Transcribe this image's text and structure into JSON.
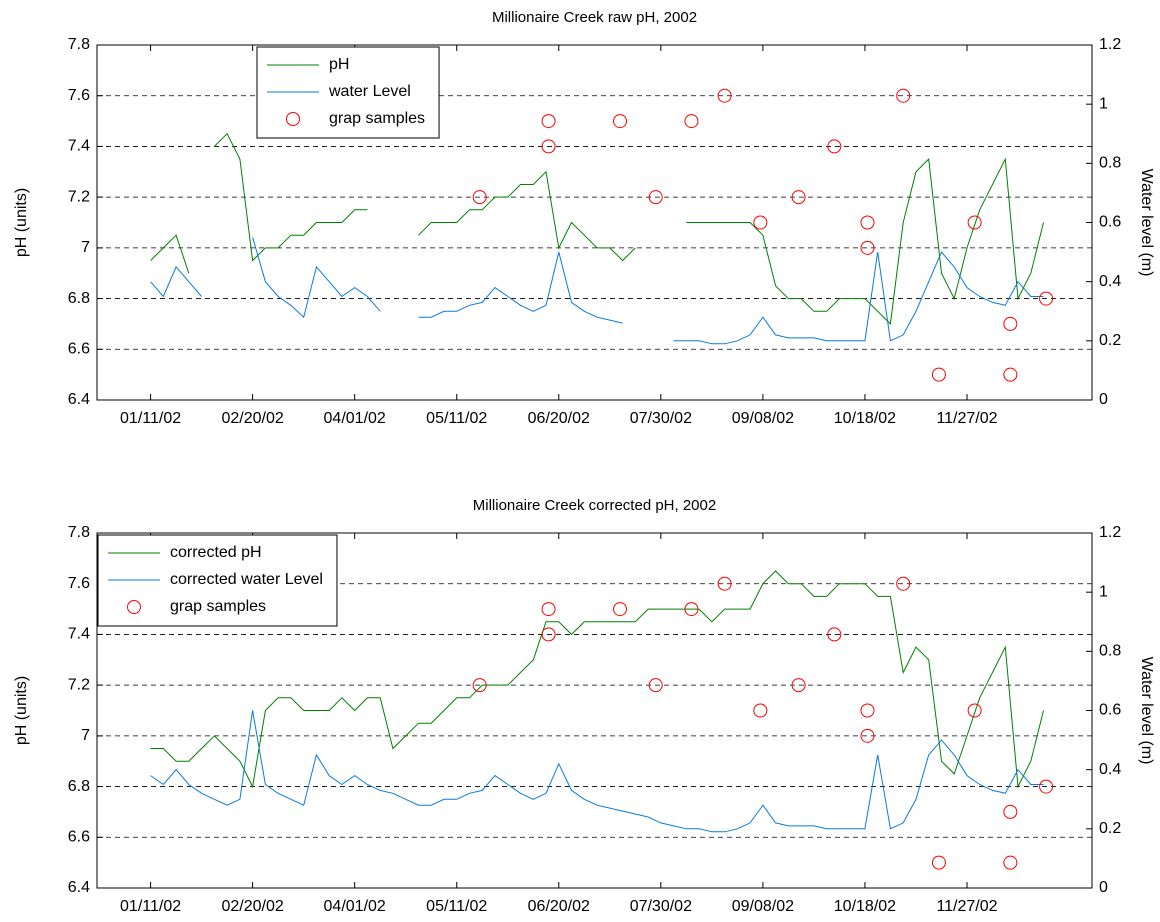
{
  "chart_data": [
    {
      "type": "line",
      "title": "Millionaire Creek raw pH, 2002",
      "ylabel": "pH (units)",
      "y2label": "Water level (m)",
      "x": [
        "2002-01-11",
        "2002-01-16",
        "2002-01-21",
        "2002-01-26",
        "2002-01-31",
        "2002-02-05",
        "2002-02-10",
        "2002-02-15",
        "2002-02-20",
        "2002-02-25",
        "2002-03-02",
        "2002-03-07",
        "2002-03-12",
        "2002-03-17",
        "2002-03-22",
        "2002-03-27",
        "2002-04-01",
        "2002-04-06",
        "2002-04-11",
        "2002-04-16",
        "2002-04-21",
        "2002-04-26",
        "2002-05-01",
        "2002-05-06",
        "2002-05-11",
        "2002-05-16",
        "2002-05-21",
        "2002-05-26",
        "2002-05-31",
        "2002-06-05",
        "2002-06-10",
        "2002-06-15",
        "2002-06-20",
        "2002-06-25",
        "2002-06-30",
        "2002-07-05",
        "2002-07-10",
        "2002-07-15",
        "2002-07-20",
        "2002-07-25",
        "2002-07-30",
        "2002-08-04",
        "2002-08-09",
        "2002-08-14",
        "2002-08-19",
        "2002-08-24",
        "2002-08-29",
        "2002-09-03",
        "2002-09-08",
        "2002-09-13",
        "2002-09-18",
        "2002-09-23",
        "2002-09-28",
        "2002-10-03",
        "2002-10-08",
        "2002-10-13",
        "2002-10-18",
        "2002-10-23",
        "2002-10-28",
        "2002-11-02",
        "2002-11-07",
        "2002-11-12",
        "2002-11-17",
        "2002-11-22",
        "2002-11-27",
        "2002-12-02",
        "2002-12-07",
        "2002-12-12",
        "2002-12-17",
        "2002-12-22",
        "2002-12-27"
      ],
      "series": [
        {
          "name": "pH",
          "color": "#008000",
          "values": [
            6.95,
            7.0,
            7.05,
            6.9,
            null,
            7.4,
            7.45,
            7.35,
            6.95,
            7.0,
            7.0,
            7.05,
            7.05,
            7.1,
            7.1,
            7.1,
            7.15,
            7.15,
            null,
            null,
            null,
            7.05,
            7.1,
            7.1,
            7.1,
            7.15,
            7.15,
            7.2,
            7.2,
            7.25,
            7.25,
            7.3,
            7.0,
            7.1,
            7.05,
            7.0,
            7.0,
            6.95,
            7.0,
            null,
            null,
            null,
            7.1,
            7.1,
            7.1,
            7.1,
            7.1,
            7.1,
            7.05,
            6.85,
            6.8,
            6.8,
            6.75,
            6.75,
            6.8,
            6.8,
            6.8,
            6.75,
            6.7,
            7.1,
            7.3,
            7.35,
            6.9,
            6.8,
            7.0,
            7.15,
            7.25,
            7.35,
            6.8,
            6.9,
            7.1
          ]
        },
        {
          "name": "water Level",
          "color": "#0a7ae0",
          "axis": "y2",
          "values": [
            0.4,
            0.35,
            0.45,
            0.4,
            0.35,
            null,
            null,
            null,
            0.55,
            0.4,
            0.35,
            0.32,
            0.28,
            0.45,
            0.4,
            0.35,
            0.38,
            0.35,
            0.3,
            null,
            null,
            0.28,
            0.28,
            0.3,
            0.3,
            0.32,
            0.33,
            0.38,
            0.35,
            0.32,
            0.3,
            0.32,
            0.5,
            0.33,
            0.3,
            0.28,
            0.27,
            0.26,
            null,
            null,
            null,
            0.2,
            0.2,
            0.2,
            0.19,
            0.19,
            0.2,
            0.22,
            0.28,
            0.22,
            0.21,
            0.21,
            0.21,
            0.2,
            0.2,
            0.2,
            0.2,
            0.5,
            0.2,
            0.22,
            0.3,
            0.4,
            0.5,
            0.45,
            0.38,
            0.35,
            0.33,
            0.32,
            0.4,
            0.35,
            0.35
          ]
        },
        {
          "name": "grap samples",
          "color": "#ff0000",
          "marker": "o",
          "x": [
            "2002-05-20",
            "2002-06-16",
            "2002-06-16",
            "2002-07-14",
            "2002-07-28",
            "2002-08-11",
            "2002-08-24",
            "2002-09-07",
            "2002-09-22",
            "2002-10-06",
            "2002-10-19",
            "2002-10-19",
            "2002-11-02",
            "2002-11-16",
            "2002-11-30",
            "2002-12-14",
            "2002-12-14",
            "2002-12-28"
          ],
          "values": [
            7.2,
            7.5,
            7.4,
            7.5,
            7.2,
            7.5,
            7.6,
            7.1,
            7.2,
            7.4,
            7.1,
            7.0,
            7.6,
            6.5,
            7.1,
            6.7,
            6.5,
            6.8
          ]
        }
      ],
      "xlim": [
        "2001-12-21",
        "2003-01-15"
      ],
      "xticks": [
        {
          "value": "2002-01-11",
          "label": "01/11/02"
        },
        {
          "value": "2002-02-20",
          "label": "02/20/02"
        },
        {
          "value": "2002-04-01",
          "label": "04/01/02"
        },
        {
          "value": "2002-05-11",
          "label": "05/11/02"
        },
        {
          "value": "2002-06-20",
          "label": "06/20/02"
        },
        {
          "value": "2002-07-30",
          "label": "07/30/02"
        },
        {
          "value": "2002-09-08",
          "label": "09/08/02"
        },
        {
          "value": "2002-10-18",
          "label": "10/18/02"
        },
        {
          "value": "2002-11-27",
          "label": "11/27/02"
        }
      ],
      "ylim": [
        6.4,
        7.8
      ],
      "yticks": [
        6.4,
        6.6,
        6.8,
        7,
        7.2,
        7.4,
        7.6,
        7.8
      ],
      "y2lim": [
        0,
        1.2
      ],
      "y2ticks": [
        0,
        0.2,
        0.4,
        0.6,
        0.8,
        1,
        1.2
      ],
      "grid": "y",
      "legend": "upper left"
    },
    {
      "type": "line",
      "title": "Millionaire Creek corrected pH, 2002",
      "ylabel": "pH (units)",
      "y2label": "Water level (m)",
      "x": [
        "2002-01-11",
        "2002-01-16",
        "2002-01-21",
        "2002-01-26",
        "2002-01-31",
        "2002-02-05",
        "2002-02-10",
        "2002-02-15",
        "2002-02-20",
        "2002-02-25",
        "2002-03-02",
        "2002-03-07",
        "2002-03-12",
        "2002-03-17",
        "2002-03-22",
        "2002-03-27",
        "2002-04-01",
        "2002-04-06",
        "2002-04-11",
        "2002-04-16",
        "2002-04-21",
        "2002-04-26",
        "2002-05-01",
        "2002-05-06",
        "2002-05-11",
        "2002-05-16",
        "2002-05-21",
        "2002-05-26",
        "2002-05-31",
        "2002-06-05",
        "2002-06-10",
        "2002-06-15",
        "2002-06-20",
        "2002-06-25",
        "2002-06-30",
        "2002-07-05",
        "2002-07-10",
        "2002-07-15",
        "2002-07-20",
        "2002-07-25",
        "2002-07-30",
        "2002-08-04",
        "2002-08-09",
        "2002-08-14",
        "2002-08-19",
        "2002-08-24",
        "2002-08-29",
        "2002-09-03",
        "2002-09-08",
        "2002-09-13",
        "2002-09-18",
        "2002-09-23",
        "2002-09-28",
        "2002-10-03",
        "2002-10-08",
        "2002-10-13",
        "2002-10-18",
        "2002-10-23",
        "2002-10-28",
        "2002-11-02",
        "2002-11-07",
        "2002-11-12",
        "2002-11-17",
        "2002-11-22",
        "2002-11-27",
        "2002-12-02",
        "2002-12-07",
        "2002-12-12",
        "2002-12-17",
        "2002-12-22",
        "2002-12-27"
      ],
      "series": [
        {
          "name": "corrected pH",
          "color": "#008000",
          "values": [
            6.95,
            6.95,
            6.9,
            6.9,
            6.95,
            7.0,
            6.95,
            6.9,
            6.8,
            7.1,
            7.15,
            7.15,
            7.1,
            7.1,
            7.1,
            7.15,
            7.1,
            7.15,
            7.15,
            6.95,
            7.0,
            7.05,
            7.05,
            7.1,
            7.15,
            7.15,
            7.2,
            7.2,
            7.2,
            7.25,
            7.3,
            7.45,
            7.45,
            7.4,
            7.45,
            7.45,
            7.45,
            7.45,
            7.45,
            7.5,
            7.5,
            7.5,
            7.5,
            7.5,
            7.45,
            7.5,
            7.5,
            7.5,
            7.6,
            7.65,
            7.6,
            7.6,
            7.55,
            7.55,
            7.6,
            7.6,
            7.6,
            7.55,
            7.55,
            7.25,
            7.35,
            7.3,
            6.9,
            6.85,
            7.0,
            7.15,
            7.25,
            7.35,
            6.8,
            6.9,
            7.1
          ]
        },
        {
          "name": "corrected water Level",
          "color": "#0a7ae0",
          "axis": "y2",
          "values": [
            0.38,
            0.35,
            0.4,
            0.35,
            0.32,
            0.3,
            0.28,
            0.3,
            0.6,
            0.35,
            0.32,
            0.3,
            0.28,
            0.45,
            0.38,
            0.35,
            0.38,
            0.35,
            0.33,
            0.32,
            0.3,
            0.28,
            0.28,
            0.3,
            0.3,
            0.32,
            0.33,
            0.38,
            0.35,
            0.32,
            0.3,
            0.32,
            0.42,
            0.33,
            0.3,
            0.28,
            0.27,
            0.26,
            0.25,
            0.24,
            0.22,
            0.21,
            0.2,
            0.2,
            0.19,
            0.19,
            0.2,
            0.22,
            0.28,
            0.22,
            0.21,
            0.21,
            0.21,
            0.2,
            0.2,
            0.2,
            0.2,
            0.45,
            0.2,
            0.22,
            0.3,
            0.45,
            0.5,
            0.45,
            0.38,
            0.35,
            0.33,
            0.32,
            0.4,
            0.35,
            0.35
          ]
        },
        {
          "name": "grap samples",
          "color": "#ff0000",
          "marker": "o",
          "x": [
            "2002-05-20",
            "2002-06-16",
            "2002-06-16",
            "2002-07-14",
            "2002-07-28",
            "2002-08-11",
            "2002-08-24",
            "2002-09-07",
            "2002-09-22",
            "2002-10-06",
            "2002-10-19",
            "2002-10-19",
            "2002-11-02",
            "2002-11-16",
            "2002-11-30",
            "2002-12-14",
            "2002-12-14",
            "2002-12-28"
          ],
          "values": [
            7.2,
            7.5,
            7.4,
            7.5,
            7.2,
            7.5,
            7.6,
            7.1,
            7.2,
            7.4,
            7.1,
            7.0,
            7.6,
            6.5,
            7.1,
            6.7,
            6.5,
            6.8
          ]
        }
      ],
      "xlim": [
        "2001-12-21",
        "2003-01-15"
      ],
      "xticks": [
        {
          "value": "2002-01-11",
          "label": "01/11/02"
        },
        {
          "value": "2002-02-20",
          "label": "02/20/02"
        },
        {
          "value": "2002-04-01",
          "label": "04/01/02"
        },
        {
          "value": "2002-05-11",
          "label": "05/11/02"
        },
        {
          "value": "2002-06-20",
          "label": "06/20/02"
        },
        {
          "value": "2002-07-30",
          "label": "07/30/02"
        },
        {
          "value": "2002-09-08",
          "label": "09/08/02"
        },
        {
          "value": "2002-10-18",
          "label": "10/18/02"
        },
        {
          "value": "2002-11-27",
          "label": "11/27/02"
        }
      ],
      "ylim": [
        6.4,
        7.8
      ],
      "yticks": [
        6.4,
        6.6,
        6.8,
        7,
        7.2,
        7.4,
        7.6,
        7.8
      ],
      "y2lim": [
        0,
        1.2
      ],
      "y2ticks": [
        0,
        0.2,
        0.4,
        0.6,
        0.8,
        1,
        1.2
      ],
      "grid": "y",
      "legend": "upper left"
    }
  ]
}
